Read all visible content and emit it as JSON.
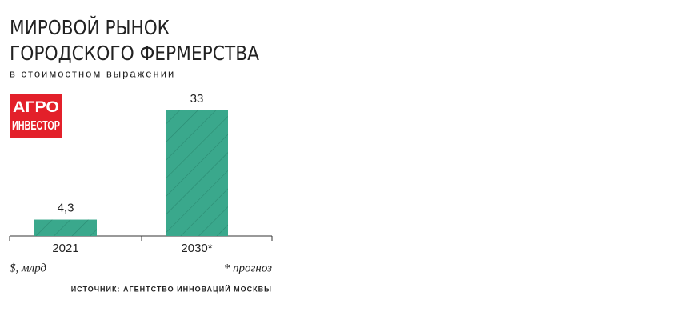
{
  "chart_data": {
    "type": "bar",
    "title": [
      "МИРОВОЙ РЫНОК",
      "ГОРОДСКОГО ФЕРМЕРСТВА"
    ],
    "subtitle": "в стоимостном выражении",
    "logo": [
      "АГРО",
      "ИНВЕСТОР"
    ],
    "categories": [
      "2021",
      "2030*"
    ],
    "values": [
      4.3,
      33
    ],
    "value_labels": [
      "4,3",
      "33"
    ],
    "color": "#3aa88c",
    "unit_label": "$, млрд",
    "note": "* прогноз",
    "source": "ИСТОЧНИК: АГЕНТСТВО ИННОВАЦИЙ МОСКВЫ"
  }
}
